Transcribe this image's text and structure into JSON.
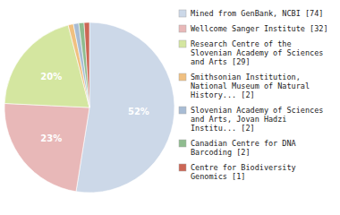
{
  "chart_data": {
    "type": "pie",
    "categories": [
      "Mined from GenBank, NCBI [74]",
      "Wellcome Sanger Institute [32]",
      "Research Centre of the\nSlovenian Academy of Sciences\nand Arts [29]",
      "Smithsonian Institution,\nNational Museum of Natural\nHistory... [2]",
      "Slovenian Academy of Sciences\nand Arts, Jovan Hadzi\nInstitu... [2]",
      "Canadian Centre for DNA\nBarcoding [2]",
      "Centre for Biodiversity\nGenomics [1]"
    ],
    "values": [
      52,
      23,
      20,
      1,
      1,
      1,
      1
    ],
    "value_labels": [
      "52%",
      "23%",
      "20%",
      null,
      null,
      null,
      null
    ],
    "colors": [
      "#ccd8e8",
      "#e8b8b8",
      "#d4e6a0",
      "#f0c080",
      "#a8bcd4",
      "#8fbc8f",
      "#cc6655"
    ],
    "data_labels": true,
    "legend": "right"
  }
}
